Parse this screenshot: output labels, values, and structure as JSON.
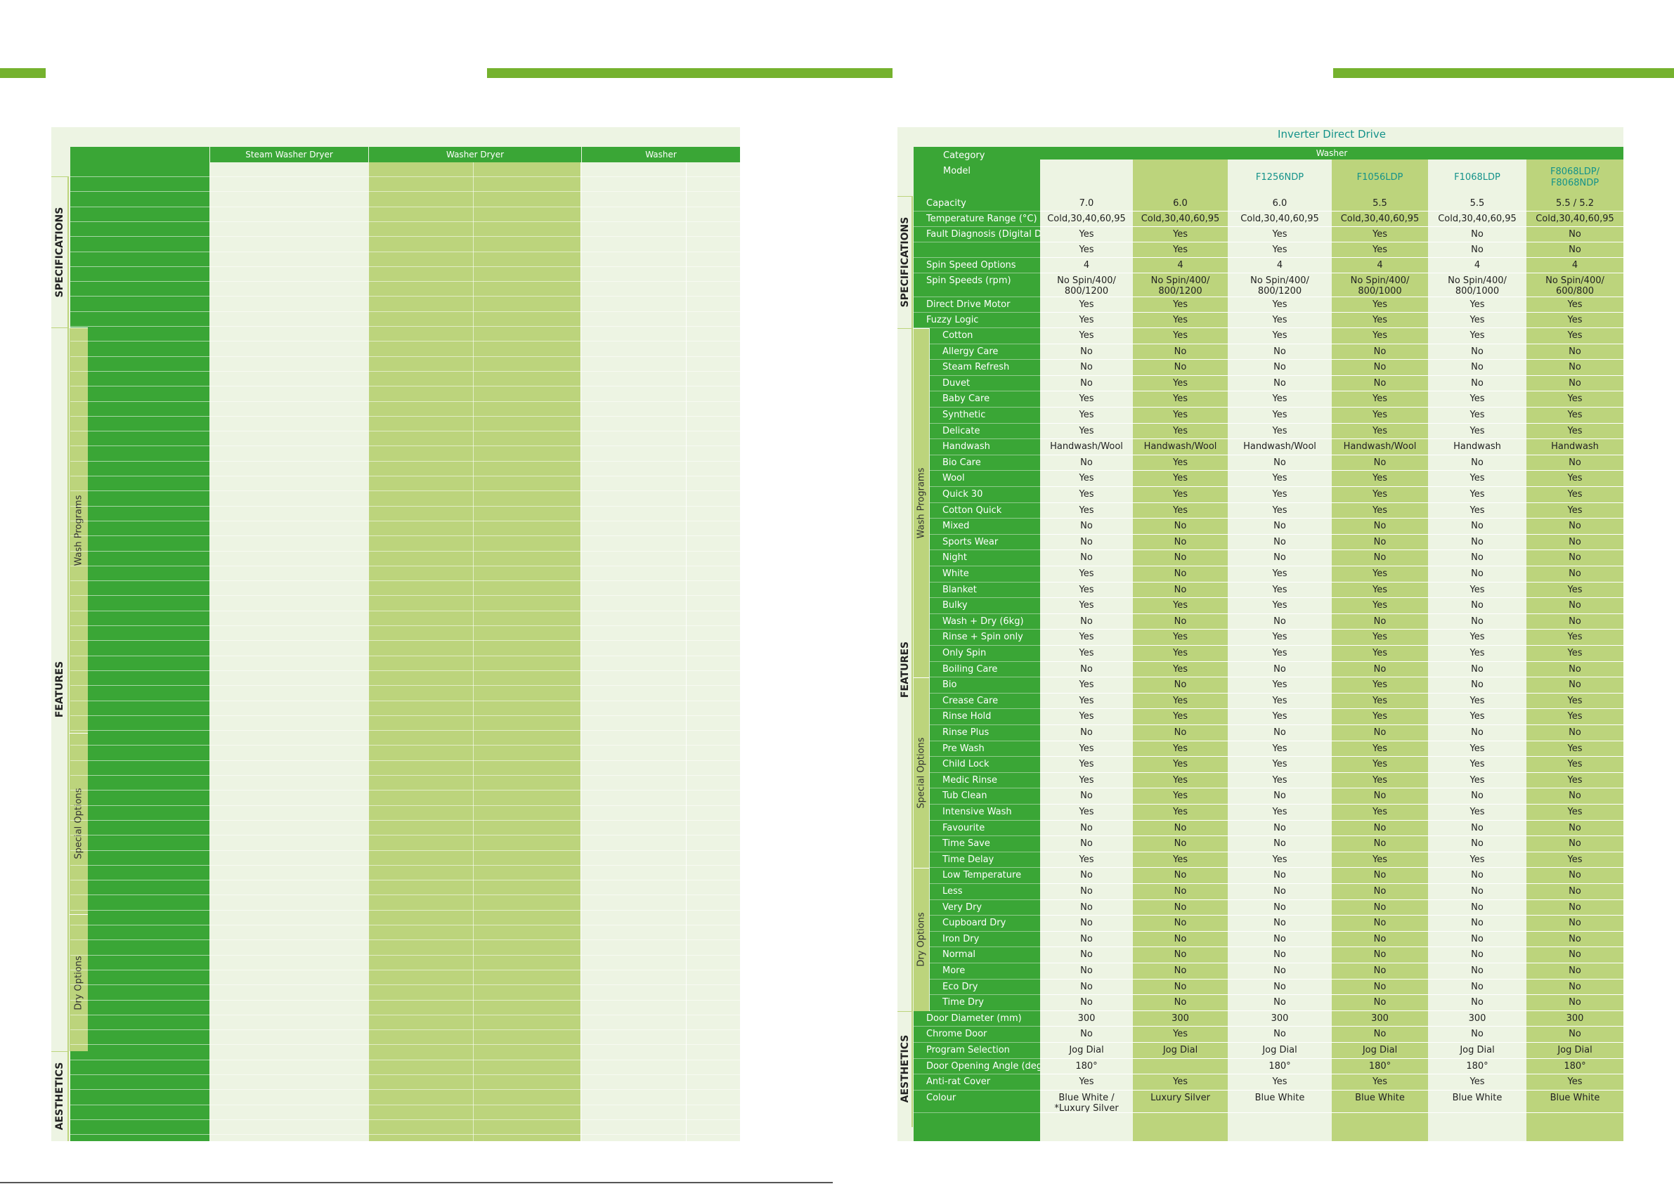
{
  "decor_colors": {
    "green": "#75b22e",
    "dark": "#3aa636",
    "light": "#bcd47c",
    "pale": "#edf4e3",
    "teal": "#14928a"
  },
  "left": {
    "col_headers": [
      "Steam Washer Dryer",
      "Washer Dryer",
      "Washer"
    ],
    "groups": {
      "specifications": "SPECIFICATIONS",
      "features": "FEATURES",
      "aesthetics": "AESTHETICS"
    },
    "subgroups": {
      "wash": "Wash Programs",
      "special": "Special Options",
      "dry": "Dry Options"
    }
  },
  "right": {
    "title": "Inverter Direct Drive",
    "category_label": "Category",
    "model_label": "Model",
    "category_value": "Washer",
    "models": [
      "",
      "",
      "F1256NDP",
      "F1056LDP",
      "F1068LDP",
      "F8068LDP/\nF8068NDP"
    ],
    "groups": {
      "specifications": "SPECIFICATIONS",
      "features": "FEATURES",
      "aesthetics": "AESTHETICS"
    },
    "subgroups": {
      "wash": "Wash Programs",
      "special": "Special Options",
      "dry": "Dry Options"
    },
    "rows": [
      {
        "label": "Capacity",
        "values": [
          "7.0",
          "6.0",
          "6.0",
          "5.5",
          "5.5",
          "5.5 / 5.2"
        ]
      },
      {
        "label": "Temperature Range (°C)",
        "values": [
          "Cold,30,40,60,95",
          "Cold,30,40,60,95",
          "Cold,30,40,60,95",
          "Cold,30,40,60,95",
          "Cold,30,40,60,95",
          "Cold,30,40,60,95"
        ]
      },
      {
        "label": "Fault Diagnosis (Digital Disp)",
        "values": [
          "Yes",
          "Yes",
          "Yes",
          "Yes",
          "No",
          "No"
        ]
      },
      {
        "label": "",
        "values": [
          "Yes",
          "Yes",
          "Yes",
          "Yes",
          "No",
          "No"
        ]
      },
      {
        "label": "Spin Speed Options",
        "values": [
          "4",
          "4",
          "4",
          "4",
          "4",
          "4"
        ]
      },
      {
        "label": "Spin Speeds (rpm)",
        "values": [
          "No Spin/400/\n800/1200",
          "No Spin/400/\n800/1200",
          "No Spin/400/\n800/1200",
          "No Spin/400/\n800/1000",
          "No Spin/400/\n800/1000",
          "No Spin/400/\n600/800"
        ]
      },
      {
        "label": "Direct Drive Motor",
        "values": [
          "Yes",
          "Yes",
          "Yes",
          "Yes",
          "Yes",
          "Yes"
        ]
      },
      {
        "label": "Fuzzy Logic",
        "values": [
          "Yes",
          "Yes",
          "Yes",
          "Yes",
          "Yes",
          "Yes"
        ]
      },
      {
        "label": "Cotton",
        "values": [
          "Yes",
          "Yes",
          "Yes",
          "Yes",
          "Yes",
          "Yes"
        ]
      },
      {
        "label": "Allergy Care",
        "values": [
          "No",
          "No",
          "No",
          "No",
          "No",
          "No"
        ]
      },
      {
        "label": "Steam Refresh",
        "values": [
          "No",
          "No",
          "No",
          "No",
          "No",
          "No"
        ]
      },
      {
        "label": "Duvet",
        "values": [
          "No",
          "Yes",
          "No",
          "No",
          "No",
          "No"
        ]
      },
      {
        "label": "Baby Care",
        "values": [
          "Yes",
          "Yes",
          "Yes",
          "Yes",
          "Yes",
          "Yes"
        ]
      },
      {
        "label": "Synthetic",
        "values": [
          "Yes",
          "Yes",
          "Yes",
          "Yes",
          "Yes",
          "Yes"
        ]
      },
      {
        "label": "Delicate",
        "values": [
          "Yes",
          "Yes",
          "Yes",
          "Yes",
          "Yes",
          "Yes"
        ]
      },
      {
        "label": "Handwash",
        "values": [
          "Handwash/Wool",
          "Handwash/Wool",
          "Handwash/Wool",
          "Handwash/Wool",
          "Handwash",
          "Handwash"
        ]
      },
      {
        "label": "Bio Care",
        "values": [
          "No",
          "Yes",
          "No",
          "No",
          "No",
          "No"
        ]
      },
      {
        "label": "Wool",
        "values": [
          "Yes",
          "Yes",
          "Yes",
          "Yes",
          "Yes",
          "Yes"
        ]
      },
      {
        "label": "Quick 30",
        "values": [
          "Yes",
          "Yes",
          "Yes",
          "Yes",
          "Yes",
          "Yes"
        ]
      },
      {
        "label": "Cotton Quick",
        "values": [
          "Yes",
          "Yes",
          "Yes",
          "Yes",
          "Yes",
          "Yes"
        ]
      },
      {
        "label": "Mixed",
        "values": [
          "No",
          "No",
          "No",
          "No",
          "No",
          "No"
        ]
      },
      {
        "label": "Sports Wear",
        "values": [
          "No",
          "No",
          "No",
          "No",
          "No",
          "No"
        ]
      },
      {
        "label": "Night",
        "values": [
          "No",
          "No",
          "No",
          "No",
          "No",
          "No"
        ]
      },
      {
        "label": "White",
        "values": [
          "Yes",
          "No",
          "Yes",
          "Yes",
          "No",
          "No"
        ]
      },
      {
        "label": "Blanket",
        "values": [
          "Yes",
          "No",
          "Yes",
          "Yes",
          "Yes",
          "Yes"
        ]
      },
      {
        "label": "Bulky",
        "values": [
          "Yes",
          "Yes",
          "Yes",
          "Yes",
          "No",
          "No"
        ]
      },
      {
        "label": "Wash + Dry (6kg)",
        "values": [
          "No",
          "No",
          "No",
          "No",
          "No",
          "No"
        ]
      },
      {
        "label": "Rinse + Spin only",
        "values": [
          "Yes",
          "Yes",
          "Yes",
          "Yes",
          "Yes",
          "Yes"
        ]
      },
      {
        "label": "Only Spin",
        "values": [
          "Yes",
          "Yes",
          "Yes",
          "Yes",
          "Yes",
          "Yes"
        ]
      },
      {
        "label": "Boiling Care",
        "values": [
          "No",
          "Yes",
          "No",
          "No",
          "No",
          "No"
        ]
      },
      {
        "label": "Bio",
        "values": [
          "Yes",
          "No",
          "Yes",
          "Yes",
          "No",
          "No"
        ]
      },
      {
        "label": "Crease Care",
        "values": [
          "Yes",
          "Yes",
          "Yes",
          "Yes",
          "Yes",
          "Yes"
        ]
      },
      {
        "label": "Rinse Hold",
        "values": [
          "Yes",
          "Yes",
          "Yes",
          "Yes",
          "Yes",
          "Yes"
        ]
      },
      {
        "label": "Rinse Plus",
        "values": [
          "No",
          "No",
          "No",
          "No",
          "No",
          "No"
        ]
      },
      {
        "label": "Pre Wash",
        "values": [
          "Yes",
          "Yes",
          "Yes",
          "Yes",
          "Yes",
          "Yes"
        ]
      },
      {
        "label": "Child Lock",
        "values": [
          "Yes",
          "Yes",
          "Yes",
          "Yes",
          "Yes",
          "Yes"
        ]
      },
      {
        "label": "Medic Rinse",
        "values": [
          "Yes",
          "Yes",
          "Yes",
          "Yes",
          "Yes",
          "Yes"
        ]
      },
      {
        "label": "Tub Clean",
        "values": [
          "No",
          "Yes",
          "No",
          "No",
          "No",
          "No"
        ]
      },
      {
        "label": "Intensive Wash",
        "values": [
          "Yes",
          "Yes",
          "Yes",
          "Yes",
          "Yes",
          "Yes"
        ]
      },
      {
        "label": "Favourite",
        "values": [
          "No",
          "No",
          "No",
          "No",
          "No",
          "No"
        ]
      },
      {
        "label": "Time Save",
        "values": [
          "No",
          "No",
          "No",
          "No",
          "No",
          "No"
        ]
      },
      {
        "label": "Time Delay",
        "values": [
          "Yes",
          "Yes",
          "Yes",
          "Yes",
          "Yes",
          "Yes"
        ]
      },
      {
        "label": "Low Temperature",
        "values": [
          "No",
          "No",
          "No",
          "No",
          "No",
          "No"
        ]
      },
      {
        "label": "Less",
        "values": [
          "No",
          "No",
          "No",
          "No",
          "No",
          "No"
        ]
      },
      {
        "label": "Very Dry",
        "values": [
          "No",
          "No",
          "No",
          "No",
          "No",
          "No"
        ]
      },
      {
        "label": "Cupboard Dry",
        "values": [
          "No",
          "No",
          "No",
          "No",
          "No",
          "No"
        ]
      },
      {
        "label": "Iron Dry",
        "values": [
          "No",
          "No",
          "No",
          "No",
          "No",
          "No"
        ]
      },
      {
        "label": "Normal",
        "values": [
          "No",
          "No",
          "No",
          "No",
          "No",
          "No"
        ]
      },
      {
        "label": "More",
        "values": [
          "No",
          "No",
          "No",
          "No",
          "No",
          "No"
        ]
      },
      {
        "label": "Eco Dry",
        "values": [
          "No",
          "No",
          "No",
          "No",
          "No",
          "No"
        ]
      },
      {
        "label": "Time Dry",
        "values": [
          "No",
          "No",
          "No",
          "No",
          "No",
          "No"
        ]
      },
      {
        "label": "Door Diameter (mm)",
        "values": [
          "300",
          "300",
          "300",
          "300",
          "300",
          "300"
        ]
      },
      {
        "label": "Chrome Door",
        "values": [
          "No",
          "Yes",
          "No",
          "No",
          "No",
          "No"
        ]
      },
      {
        "label": "Program Selection",
        "values": [
          "Jog Dial",
          "Jog Dial",
          "Jog Dial",
          "Jog Dial",
          "Jog Dial",
          "Jog Dial"
        ]
      },
      {
        "label": "Door Opening Angle (deg)",
        "values": [
          "180°",
          "",
          "180°",
          "180°",
          "180°",
          "180°"
        ]
      },
      {
        "label": "Anti-rat Cover",
        "values": [
          "Yes",
          "Yes",
          "Yes",
          "Yes",
          "Yes",
          "Yes"
        ]
      },
      {
        "label": "Colour",
        "values": [
          "Blue White /\n*Luxury Silver",
          "Luxury Silver",
          "Blue White",
          "Blue White",
          "Blue White",
          "Blue White"
        ]
      }
    ]
  }
}
